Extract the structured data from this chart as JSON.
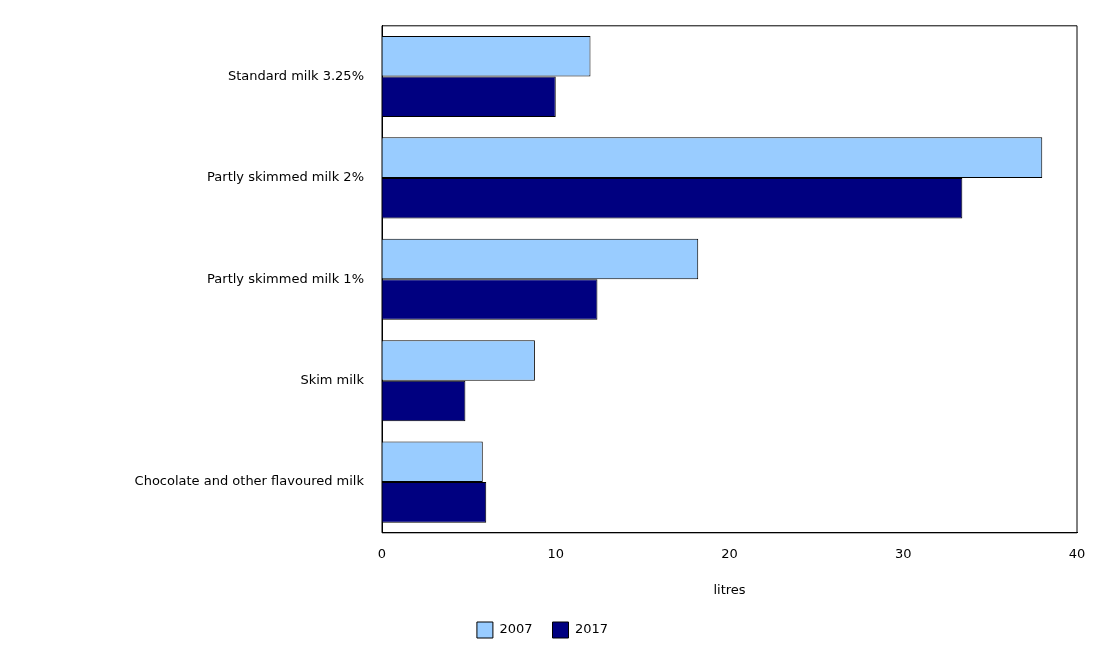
{
  "chart_data": {
    "type": "bar",
    "orientation": "horizontal",
    "xlabel": "litres",
    "categories": [
      "Standard milk 3.25%",
      "Partly skimmed milk 2%",
      "Partly skimmed milk 1%",
      "Skim milk",
      "Chocolate and other flavoured milk"
    ],
    "series": [
      {
        "name": "2007",
        "color": "#99ccff",
        "values": [
          12.0,
          38.0,
          18.2,
          8.8,
          5.8
        ]
      },
      {
        "name": "2017",
        "color": "#000080",
        "values": [
          10.0,
          33.4,
          12.4,
          4.8,
          6.0
        ]
      }
    ],
    "xlim": [
      0,
      40
    ],
    "xticks": [
      0,
      10,
      20,
      30,
      40
    ],
    "grid": false,
    "legend": "bottom"
  }
}
